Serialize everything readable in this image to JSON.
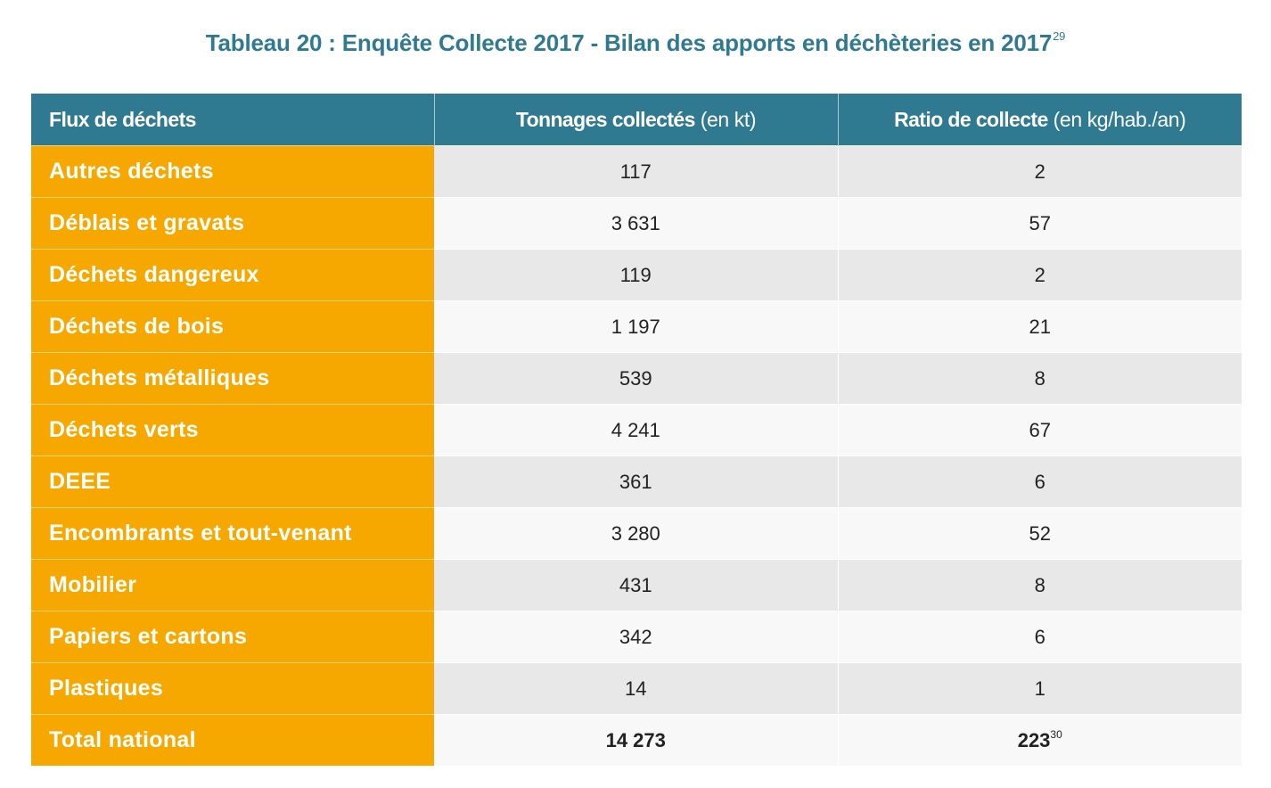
{
  "title": {
    "text": "Tableau 20 : Enquête Collecte 2017 - Bilan des apports en déchèteries en 2017",
    "footnote": "29"
  },
  "table": {
    "headers": [
      {
        "bold": "Flux de déchets",
        "unit": ""
      },
      {
        "bold": "Tonnages collectés",
        "unit": " (en kt)"
      },
      {
        "bold": "Ratio de collecte",
        "unit": " (en kg/hab./an)"
      }
    ],
    "rows": [
      {
        "label": "Autres déchets",
        "tonnage": "117",
        "ratio": "2"
      },
      {
        "label": "Déblais et gravats",
        "tonnage": "3 631",
        "ratio": "57"
      },
      {
        "label": "Déchets dangereux",
        "tonnage": "119",
        "ratio": "2"
      },
      {
        "label": "Déchets de bois",
        "tonnage": "1 197",
        "ratio": "21"
      },
      {
        "label": "Déchets métalliques",
        "tonnage": "539",
        "ratio": "8"
      },
      {
        "label": "Déchets verts",
        "tonnage": "4 241",
        "ratio": "67"
      },
      {
        "label": "DEEE",
        "tonnage": "361",
        "ratio": "6"
      },
      {
        "label": "Encombrants et tout-venant",
        "tonnage": "3 280",
        "ratio": "52"
      },
      {
        "label": "Mobilier",
        "tonnage": "431",
        "ratio": "8"
      },
      {
        "label": "Papiers et cartons",
        "tonnage": "342",
        "ratio": "6"
      },
      {
        "label": "Plastiques",
        "tonnage": "14",
        "ratio": "1"
      }
    ],
    "total": {
      "label": "Total national",
      "tonnage": "14 273",
      "ratio": "223",
      "ratio_footnote": "30"
    }
  },
  "colors": {
    "header_bg": "#2f7a91",
    "label_bg": "#f6a800",
    "row_dark": "#e8e8e8",
    "row_light": "#f8f8f8",
    "title": "#2f7a91"
  }
}
